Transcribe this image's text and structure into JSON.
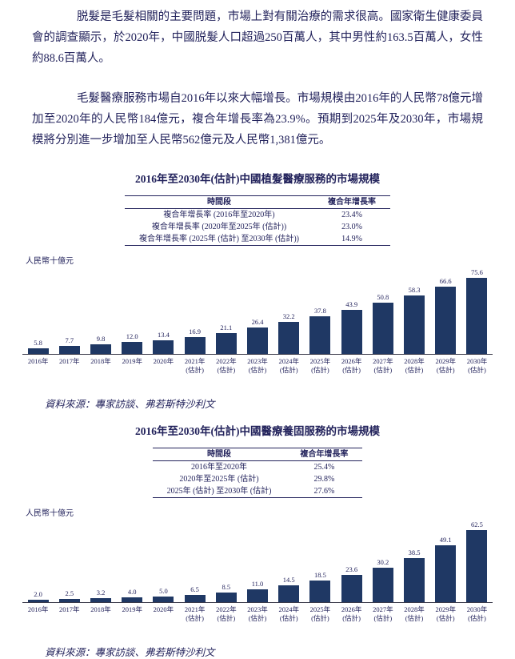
{
  "page": {
    "paragraphs": [
      "脱髮是毛髮相關的主要問題，市場上對有關治療的需求很高。國家衛生健康委員會的調查顯示，於2020年，中國脱髮人口超過250百萬人，其中男性約163.5百萬人，女性約88.6百萬人。",
      "毛髮醫療服務市場自2016年以來大幅增長。市場規模由2016年的人民幣78億元增加至2020年的人民幣184億元，複合年增長率為23.9%。預期到2025年及2030年，市場規模將分別進一步增加至人民幣562億元及人民幣1,381億元。"
    ]
  },
  "chart_data": [
    {
      "type": "bar",
      "title": "2016年至2030年(估計)中國植髮醫療服務的市場規模",
      "table": {
        "headers": [
          "時間段",
          "複合年增長率"
        ],
        "rows": [
          [
            "複合年增長率 (2016年至2020年)",
            "23.4%"
          ],
          [
            "複合年增長率 (2020年至2025年 (估計))",
            "23.0%"
          ],
          [
            "複合年增長率 (2025年 (估計) 至2030年 (估計))",
            "14.9%"
          ]
        ]
      },
      "ylabel": "人民幣十億元",
      "xlabel": "",
      "ylim": [
        0,
        80
      ],
      "grid": false,
      "legend": "none",
      "bar_color": "#1f3864",
      "categories": [
        "2016年",
        "2017年",
        "2018年",
        "2019年",
        "2020年",
        "2021年\n(估計)",
        "2022年\n(估計)",
        "2023年\n(估計)",
        "2024年\n(估計)",
        "2025年\n(估計)",
        "2026年\n(估計)",
        "2027年\n(估計)",
        "2028年\n(估計)",
        "2029年\n(估計)",
        "2030年\n(估計)"
      ],
      "values": [
        5.8,
        7.7,
        9.8,
        12.0,
        13.4,
        16.9,
        21.1,
        26.4,
        32.2,
        37.8,
        43.9,
        50.8,
        58.3,
        66.6,
        75.6
      ],
      "value_labels": [
        "5.8",
        "7.7",
        "9.8",
        "12.0",
        "13.4",
        "16.9",
        "21.1",
        "26.4",
        "32.2",
        "37.8",
        "43.9",
        "50.8",
        "58.3",
        "66.6",
        "75.6"
      ],
      "source": "資料來源：專家訪談、弗若斯特沙利文"
    },
    {
      "type": "bar",
      "title": "2016年至2030年(估計)中國醫療養固服務的市場規模",
      "table": {
        "headers": [
          "時間段",
          "複合年增長率"
        ],
        "rows": [
          [
            "2016年至2020年",
            "25.4%"
          ],
          [
            "2020年至2025年 (估計)",
            "29.8%"
          ],
          [
            "2025年 (估計) 至2030年 (估計)",
            "27.6%"
          ]
        ]
      },
      "ylabel": "人民幣十億元",
      "xlabel": "",
      "ylim": [
        0,
        70
      ],
      "grid": false,
      "legend": "none",
      "bar_color": "#1f3864",
      "categories": [
        "2016年",
        "2017年",
        "2018年",
        "2019年",
        "2020年",
        "2021年\n(估計)",
        "2022年\n(估計)",
        "2023年\n(估計)",
        "2024年\n(估計)",
        "2025年\n(估計)",
        "2026年\n(估計)",
        "2027年\n(估計)",
        "2028年\n(估計)",
        "2029年\n(估計)",
        "2030年\n(估計)"
      ],
      "values": [
        2.0,
        2.5,
        3.2,
        4.0,
        5.0,
        6.5,
        8.5,
        11.0,
        14.5,
        18.5,
        23.6,
        30.2,
        38.5,
        49.1,
        62.5
      ],
      "value_labels": [
        "2.0",
        "2.5",
        "3.2",
        "4.0",
        "5.0",
        "6.5",
        "8.5",
        "11.0",
        "14.5",
        "18.5",
        "23.6",
        "30.2",
        "38.5",
        "49.1",
        "62.5"
      ],
      "source": "資料來源：專家訪談、弗若斯特沙利文"
    }
  ]
}
